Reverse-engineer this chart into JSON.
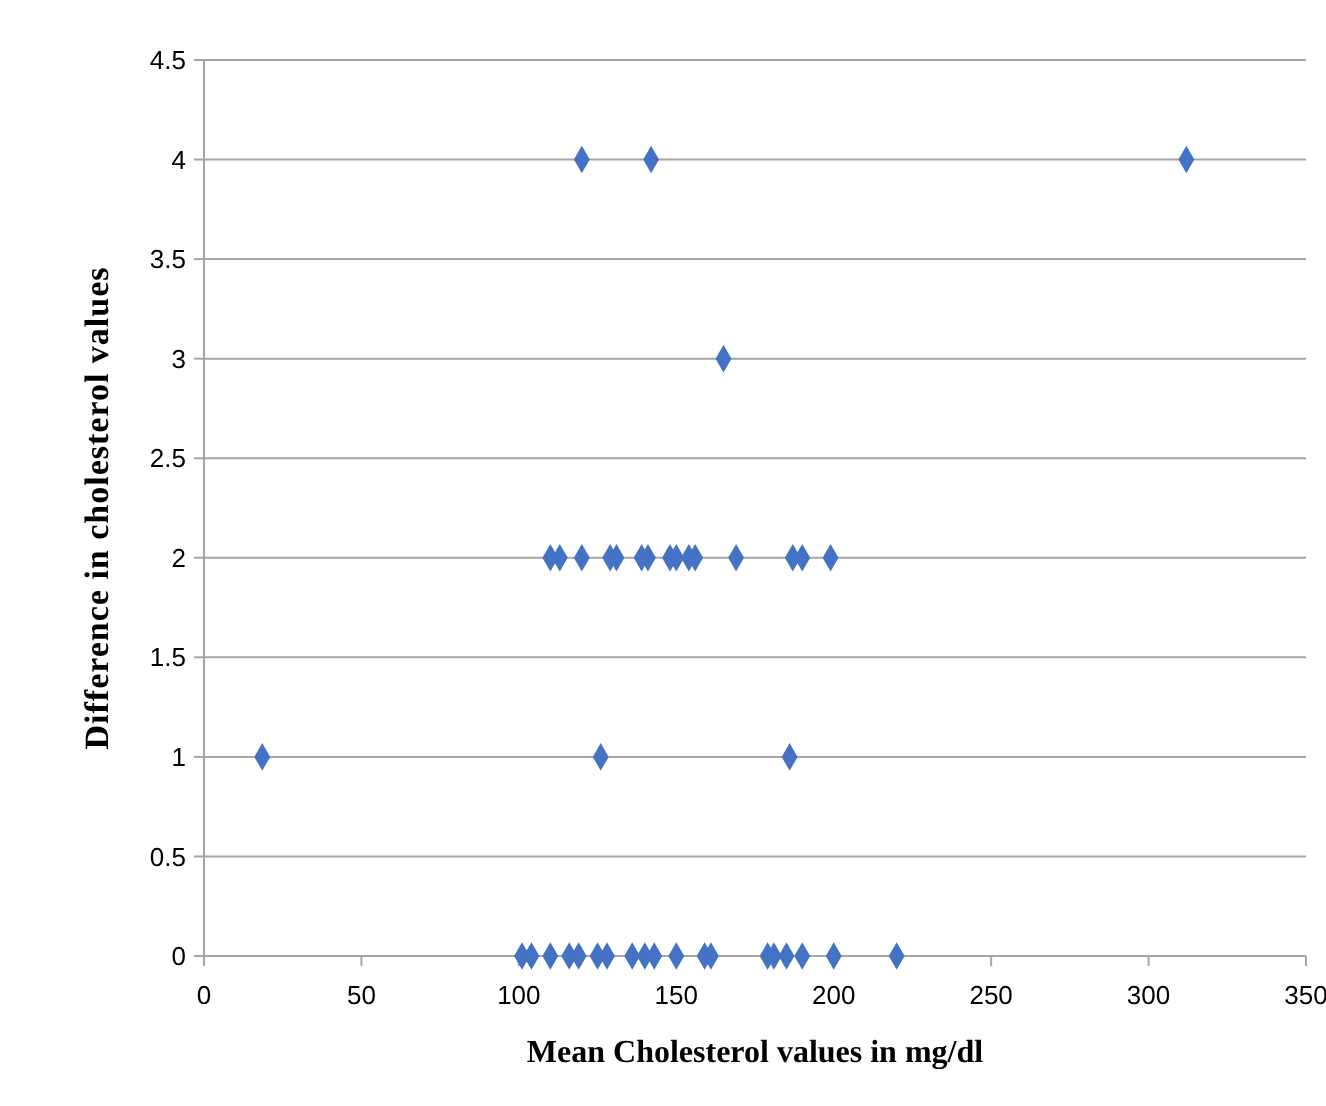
{
  "chart_data": {
    "type": "scatter",
    "xlabel": "Mean Cholesterol values in mg/dl",
    "ylabel": "Difference in cholesterol values",
    "xlim": [
      0,
      350
    ],
    "xticks": [
      0,
      50,
      100,
      150,
      200,
      250,
      300,
      350
    ],
    "ylim": [
      0,
      4.5
    ],
    "yticks": [
      0,
      0.5,
      1,
      1.5,
      2,
      2.5,
      3,
      3.5,
      4,
      4.5
    ],
    "grid": "y",
    "marker": "diamond",
    "series": [
      {
        "color": "#4472c4",
        "x": [
          120,
          142,
          312,
          165,
          18.5,
          126,
          186,
          110,
          113,
          120,
          129,
          131,
          139,
          141,
          148,
          150,
          154,
          156,
          169,
          187,
          190,
          199,
          101,
          104,
          110,
          116,
          119,
          125,
          128,
          136,
          140,
          143,
          150,
          159,
          161,
          179,
          181,
          185,
          190,
          200,
          220
        ],
        "values": [
          4,
          4,
          4,
          3,
          1,
          1,
          1,
          2,
          2,
          2,
          2,
          2,
          2,
          2,
          2,
          2,
          2,
          2,
          2,
          2,
          2,
          2,
          0,
          0,
          0,
          0,
          0,
          0,
          0,
          0,
          0,
          0,
          0,
          0,
          0,
          0,
          0,
          0,
          0,
          0,
          0
        ]
      }
    ]
  }
}
